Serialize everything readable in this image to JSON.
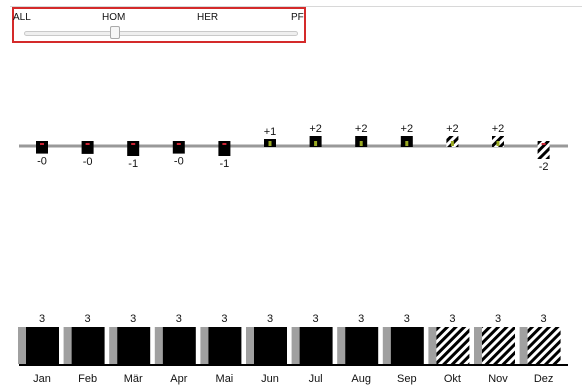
{
  "filter": {
    "options": [
      "ALL",
      "HOM",
      "HER",
      "PF"
    ],
    "selected_index": 1
  },
  "colors": {
    "bar": "#000000",
    "baseline": "#999999",
    "shadow": "#a0a0a0",
    "marker_negative": "#cc2233",
    "marker_positive": "#9aaa22",
    "filter_border": "#d42a2a"
  },
  "chart_data": [
    {
      "type": "scatter",
      "categories": [
        "Jan",
        "Feb",
        "Mär",
        "Apr",
        "Mai",
        "Jun",
        "Jul",
        "Aug",
        "Sep",
        "Okt",
        "Nov",
        "Dez"
      ],
      "values": [
        -0.2,
        -0.3,
        -1,
        -0.2,
        -1,
        1,
        2,
        2,
        2,
        2,
        2,
        -2
      ],
      "labels": [
        "-0",
        "-0",
        "-1",
        "-0",
        "-1",
        "+1",
        "+2",
        "+2",
        "+2",
        "+2",
        "+2",
        "-2"
      ],
      "projected": [
        false,
        false,
        false,
        false,
        false,
        false,
        false,
        false,
        false,
        true,
        true,
        true
      ],
      "title": "",
      "xlabel": "",
      "ylabel": ""
    },
    {
      "type": "bar",
      "categories": [
        "Jan",
        "Feb",
        "Mär",
        "Apr",
        "Mai",
        "Jun",
        "Jul",
        "Aug",
        "Sep",
        "Okt",
        "Nov",
        "Dez"
      ],
      "values": [
        3,
        3,
        3,
        3,
        3,
        3,
        3,
        3,
        3,
        3,
        3,
        3
      ],
      "labels": [
        "3",
        "3",
        "3",
        "3",
        "3",
        "3",
        "3",
        "3",
        "3",
        "3",
        "3",
        "3"
      ],
      "projected": [
        false,
        false,
        false,
        false,
        false,
        false,
        false,
        false,
        false,
        true,
        true,
        true
      ],
      "title": "",
      "xlabel": "",
      "ylabel": "",
      "grid": false
    }
  ]
}
